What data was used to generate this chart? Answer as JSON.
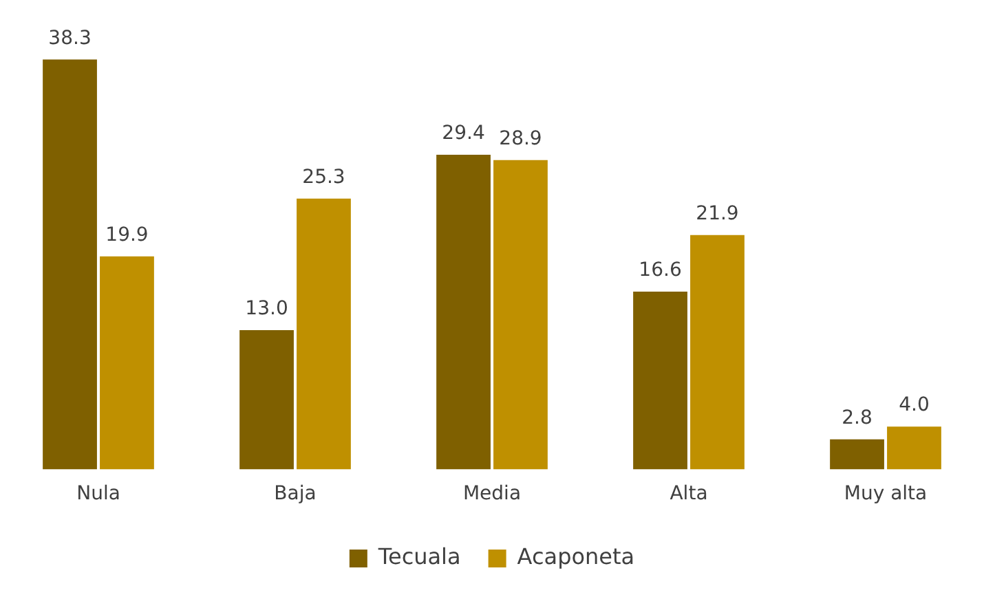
{
  "chart_data": {
    "type": "bar",
    "categories": [
      "Nula",
      "Baja",
      "Media",
      "Alta",
      "Muy alta"
    ],
    "series": [
      {
        "name": "Tecuala",
        "color": "#7f6000",
        "values": [
          38.3,
          13.0,
          29.4,
          16.6,
          2.8
        ],
        "value_labels": [
          "38.3",
          "13.0",
          "29.4",
          "16.6",
          "2.8"
        ]
      },
      {
        "name": "Acaponeta",
        "color": "#bf9000",
        "values": [
          19.9,
          25.3,
          28.9,
          21.9,
          4.0
        ],
        "value_labels": [
          "19.9",
          "25.3",
          "28.9",
          "21.9",
          "4.0"
        ]
      }
    ],
    "grid": false,
    "legend": "bottom"
  }
}
